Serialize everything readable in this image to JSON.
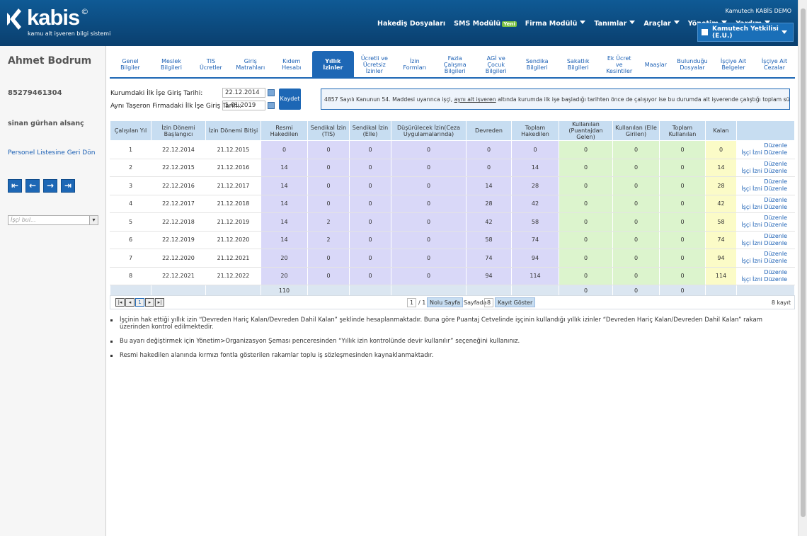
{
  "header": {
    "logo": "kabis",
    "logo_mark": "©",
    "tagline": "kamu alt işveren bilgi sistemi",
    "company": "Kamutech KABİS DEMO",
    "user": "Kamutech Yetkilisi (E.U.)",
    "nav": [
      {
        "label": "Hakediş Dosyaları"
      },
      {
        "label": "SMS Modülü",
        "badge": "Yeni"
      },
      {
        "label": "Firma Modülü",
        "dropdown": true
      },
      {
        "label": "Tanımlar",
        "dropdown": true
      },
      {
        "label": "Araçlar",
        "dropdown": true
      },
      {
        "label": "Yönetim",
        "dropdown": true
      },
      {
        "label": "Yardım",
        "dropdown": true
      }
    ]
  },
  "sidebar": {
    "name": "Ahmet Bodrum",
    "id_number": "85279461304",
    "manager": "sinan gürhan alsanç",
    "back_link": "Personel Listesine Geri Dön",
    "search_placeholder": "İşçi bul..."
  },
  "tabs": {
    "items": [
      "Genel Bilgiler",
      "Meslek Bilgileri",
      "TIS Ücretler",
      "Giriş Matrahları",
      "Kıdem Hesabı",
      "Yıllık İzinler",
      "Ücretli ve Ücretsiz İzinler",
      "İzin Formları",
      "Fazla Çalışma Bilgileri",
      "AGİ ve Çocuk Bilgileri",
      "Sendika Bilgileri",
      "Sakatlık Bilgileri",
      "Ek Ücret ve Kesintiler",
      "Maaşlar",
      "Bulunduğu Dosyalar",
      "İşçiye Ait Belgeler",
      "İşçiye Ait Cezalar"
    ],
    "active": 5
  },
  "form": {
    "fields": [
      {
        "label": "Kurumdaki İlk İşe Giriş Tarihi:",
        "value": "22.12.2014"
      },
      {
        "label": "Aynı Taşeron Firmadaki İlk İşe Giriş Tarihi:",
        "value": "1.01.2019"
      }
    ],
    "button": "Kaydet"
  },
  "notice": {
    "before": "4857 Sayılı Kanunun 54. Maddesi uyarınca işçi, ",
    "link": "aynı alt işveren",
    "after": " altında kurumda ilk işe başladığı tarihten önce de çalışıyor ise bu durumda alt işverende çalıştığı toplam süreler dikkate alınmalıdır."
  },
  "table": {
    "columns": [
      "Çalışılan Yıl",
      "İzin Dönemi Başlangıcı",
      "İzin Dönemi Bitişi",
      "Resmi Hakedilen",
      "Sendikal İzin (TIS)",
      "Sendikal İzin (Elle)",
      "Düşürülecek İzin(Ceza Uygulamalarında)",
      "Devreden",
      "Toplam Hakedilen",
      "Kullanılan (Puantajdan Gelen)",
      "Kullanılan (Elle Girilen)",
      "Toplam Kullanılan",
      "Kalan"
    ],
    "rows": [
      [
        1,
        "22.12.2014",
        "21.12.2015",
        0,
        0,
        0,
        0,
        0,
        0,
        0,
        0,
        0,
        0
      ],
      [
        2,
        "22.12.2015",
        "21.12.2016",
        14,
        0,
        0,
        0,
        0,
        14,
        0,
        0,
        0,
        14
      ],
      [
        3,
        "22.12.2016",
        "21.12.2017",
        14,
        0,
        0,
        0,
        14,
        28,
        0,
        0,
        0,
        28
      ],
      [
        4,
        "22.12.2017",
        "21.12.2018",
        14,
        0,
        0,
        0,
        28,
        42,
        0,
        0,
        0,
        42
      ],
      [
        5,
        "22.12.2018",
        "21.12.2019",
        14,
        2,
        0,
        0,
        42,
        58,
        0,
        0,
        0,
        58
      ],
      [
        6,
        "22.12.2019",
        "21.12.2020",
        14,
        2,
        0,
        0,
        58,
        74,
        0,
        0,
        0,
        74
      ],
      [
        7,
        "22.12.2020",
        "21.12.2021",
        20,
        0,
        0,
        0,
        74,
        94,
        0,
        0,
        0,
        94
      ],
      [
        8,
        "22.12.2021",
        "21.12.2022",
        20,
        0,
        0,
        0,
        94,
        114,
        0,
        0,
        0,
        114
      ]
    ],
    "row_actions": [
      "Düzenle",
      "İşçi İzni Düzenle"
    ],
    "totals": {
      "resmi_hakedilen": 110,
      "kullanilan_puantaj": 0,
      "kullanilan_elle": 0,
      "toplam_kullanilan": 0
    }
  },
  "pager": {
    "page": "1",
    "of": "/ 1",
    "page_button": "Nolu Sayfa",
    "per_page_label": "Sayfada",
    "per_page": "8",
    "show_button": "Kayıt Göster",
    "count": "8 kayıt"
  },
  "notes": [
    "İşçinin hak ettiği yıllık izin “Devreden Hariç Kalan/Devreden Dahil Kalan” şeklinde hesaplanmaktadır. Buna göre Puantaj Cetvelinde işçinin kullandığı yıllık izinler “Devreden Hariç Kalan/Devreden Dahil Kalan” rakam üzerinden kontrol edilmektedir.",
    "Bu ayarı değiştirmek için Yönetim>Organizasyon Şeması penceresinden “Yıllık izin kontrolünde devir kullanılır” seçeneğini kullanınız.",
    "Resmi hakedilen alanında kırmızı fontla gösterilen rakamlar toplu iş sözleşmesinden kaynaklanmaktadır."
  ]
}
